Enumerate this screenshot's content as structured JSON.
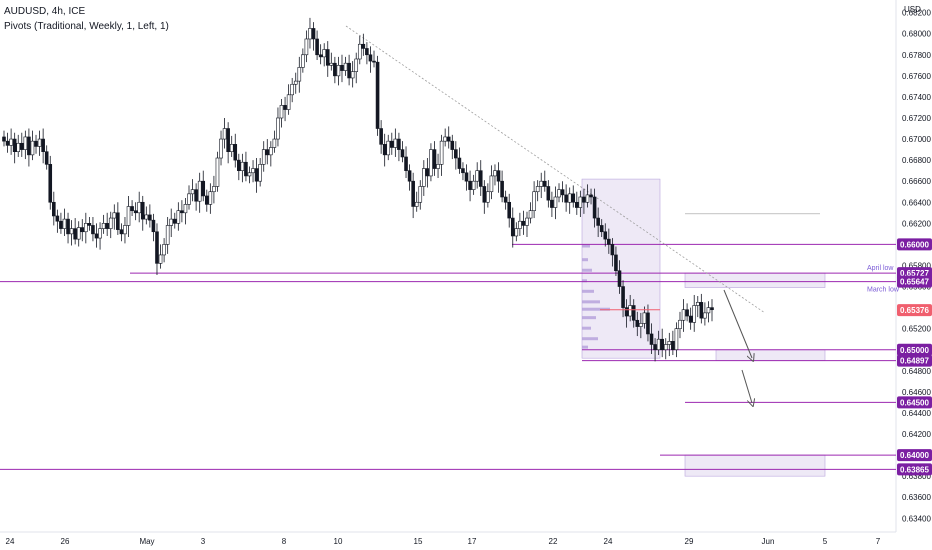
{
  "legend": {
    "symbol": "AUDUSD, 4h, ICE",
    "indicator": "Pivots (Traditional, Weekly, 1, Left, 1)"
  },
  "colors": {
    "up_body": "#ffffff",
    "down_body": "#131722",
    "wick": "#131722",
    "level_line": "#9c27b0",
    "level_badge": "#7b1fa2",
    "price_badge": "#f05f6e",
    "zone_fill": "#ede7f6",
    "profile_fill": "#b39ddb",
    "trend_line": "#9e9e9e"
  },
  "chart_data": {
    "type": "candlestick",
    "title": "AUDUSD, 4h, ICE",
    "currency": "USD",
    "y_ticks": [
      0.682,
      0.68,
      0.678,
      0.676,
      0.674,
      0.672,
      0.67,
      0.668,
      0.666,
      0.664,
      0.662,
      0.66,
      0.658,
      0.656,
      0.654,
      0.652,
      0.65,
      0.648,
      0.646,
      0.644,
      0.642,
      0.64,
      0.638,
      0.636,
      0.634
    ],
    "y_tick_labels": [
      "0.68200",
      "0.68000",
      "0.67800",
      "0.67600",
      "0.67400",
      "0.67200",
      "0.67000",
      "0.66800",
      "0.66600",
      "0.66400",
      "0.66200",
      "0.66000",
      "0.65800",
      "0.65600",
      "0.65400",
      "0.65200",
      "0.65000",
      "0.64800",
      "0.64600",
      "0.64400",
      "0.64200",
      "0.64000",
      "0.63800",
      "0.63600",
      "0.63400"
    ],
    "ylim": [
      0.6327,
      0.6832
    ],
    "x_labels": [
      "24",
      "26",
      "May",
      "3",
      "8",
      "10",
      "15",
      "17",
      "22",
      "24",
      "29",
      "Jun",
      "5",
      "7"
    ],
    "closes": [
      0.6698,
      0.6694,
      0.67,
      0.6688,
      0.6696,
      0.669,
      0.6702,
      0.6685,
      0.6698,
      0.6693,
      0.67,
      0.6688,
      0.6676,
      0.664,
      0.6627,
      0.6622,
      0.6615,
      0.6624,
      0.661,
      0.6615,
      0.6605,
      0.6616,
      0.6612,
      0.662,
      0.6618,
      0.661,
      0.6606,
      0.6615,
      0.662,
      0.6615,
      0.6625,
      0.663,
      0.6614,
      0.661,
      0.6618,
      0.6636,
      0.6632,
      0.663,
      0.664,
      0.6624,
      0.6628,
      0.6623,
      0.6612,
      0.6582,
      0.659,
      0.66,
      0.6618,
      0.6624,
      0.662,
      0.6632,
      0.663,
      0.6638,
      0.6648,
      0.6652,
      0.6641,
      0.666,
      0.6646,
      0.6638,
      0.665,
      0.6655,
      0.6682,
      0.67,
      0.671,
      0.6688,
      0.6695,
      0.668,
      0.667,
      0.6678,
      0.6665,
      0.6668,
      0.6672,
      0.666,
      0.6676,
      0.669,
      0.6685,
      0.6692,
      0.67,
      0.672,
      0.6732,
      0.6728,
      0.6742,
      0.6752,
      0.6755,
      0.6768,
      0.678,
      0.6795,
      0.6805,
      0.6795,
      0.678,
      0.6778,
      0.6785,
      0.677,
      0.6772,
      0.676,
      0.677,
      0.6765,
      0.6772,
      0.6758,
      0.6764,
      0.6776,
      0.679,
      0.6786,
      0.678,
      0.6774,
      0.6773,
      0.671,
      0.6695,
      0.6685,
      0.6698,
      0.6692,
      0.67,
      0.669,
      0.6683,
      0.667,
      0.666,
      0.6636,
      0.664,
      0.6655,
      0.6672,
      0.6665,
      0.669,
      0.6672,
      0.6676,
      0.6698,
      0.6702,
      0.6698,
      0.669,
      0.6682,
      0.6672,
      0.6668,
      0.666,
      0.6652,
      0.666,
      0.667,
      0.6655,
      0.664,
      0.665,
      0.6665,
      0.667,
      0.666,
      0.6645,
      0.664,
      0.6625,
      0.6608,
      0.6615,
      0.6622,
      0.6618,
      0.6625,
      0.6632,
      0.665,
      0.6655,
      0.666,
      0.6655,
      0.6642,
      0.6635,
      0.6645,
      0.6652,
      0.6647,
      0.664,
      0.6648,
      0.664,
      0.6635,
      0.6645,
      0.664,
      0.6647,
      0.6645,
      0.6625,
      0.6618,
      0.6612,
      0.6605,
      0.66,
      0.659,
      0.6575,
      0.656,
      0.654,
      0.6532,
      0.6542,
      0.6528,
      0.6522,
      0.6525,
      0.6535,
      0.6515,
      0.6505,
      0.65,
      0.651,
      0.65,
      0.6505,
      0.6508,
      0.65,
      0.652,
      0.6528,
      0.6538,
      0.6532,
      0.6526,
      0.6542,
      0.6545,
      0.653,
      0.6535,
      0.654,
      0.6538
    ],
    "series_start": 0.6702,
    "levels": [
      {
        "value": 0.66,
        "label": "0.66000"
      },
      {
        "value": 0.65727,
        "label": "0.65727"
      },
      {
        "value": 0.65647,
        "label": "0.65647"
      },
      {
        "value": 0.65,
        "label": "0.65000"
      },
      {
        "value": 0.64897,
        "label": "0.64897"
      },
      {
        "value": 0.645,
        "label": "0.64500"
      },
      {
        "value": 0.64,
        "label": "0.64000"
      },
      {
        "value": 0.63865,
        "label": "0.63865"
      }
    ],
    "current_price": {
      "value": 0.65376,
      "label": "0.65376"
    },
    "annotations": [
      {
        "text": "April low",
        "value": 0.65727
      },
      {
        "text": "March low",
        "value": 0.65647
      }
    ]
  }
}
